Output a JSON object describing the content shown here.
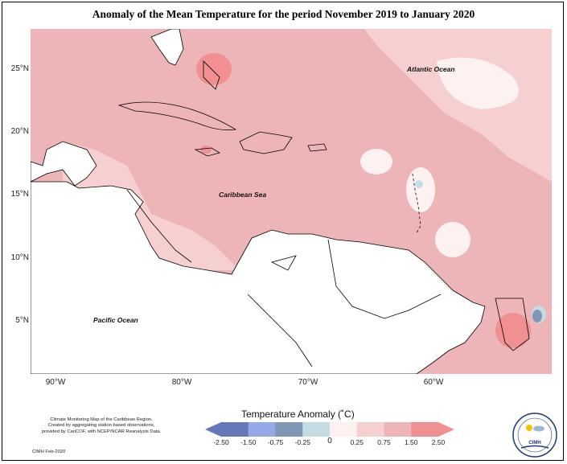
{
  "title": "Anomaly of the Mean Temperature for the period November 2019 to January 2020",
  "map": {
    "latitude_labels": [
      "25°N",
      "20°N",
      "15°N",
      "10°N",
      "5°N"
    ],
    "longitude_labels": [
      "90°W",
      "80°W",
      "70°W",
      "60°W"
    ],
    "region_labels": {
      "atlantic": "Atlantic Ocean",
      "caribbean": "Caribbean Sea",
      "pacific": "Pacific Ocean"
    }
  },
  "legend": {
    "title": "Temperature Anomaly (˚C)",
    "ticks": [
      "-2.50",
      "-1.50",
      "-0.75",
      "-0.25",
      "0",
      "0.25",
      "0.75",
      "1.50",
      "2.50"
    ],
    "colors": [
      "#6677bb",
      "#93a9e8",
      "#7f97b5",
      "#c4dce2",
      "#fdf1f1",
      "#f6cfd1",
      "#edb5b8",
      "#f09093"
    ]
  },
  "credit": {
    "lines": [
      "Climate Monitoring Map of the Caribbean Region.",
      "Created by aggregating station based observations,",
      "provided by CariCOF, with NCEP/NCAR Reanalysis Data."
    ],
    "date": "CIMH Feb-2020"
  },
  "logo": {
    "text": "CIMH",
    "icon": "cimh-logo-icon"
  }
}
